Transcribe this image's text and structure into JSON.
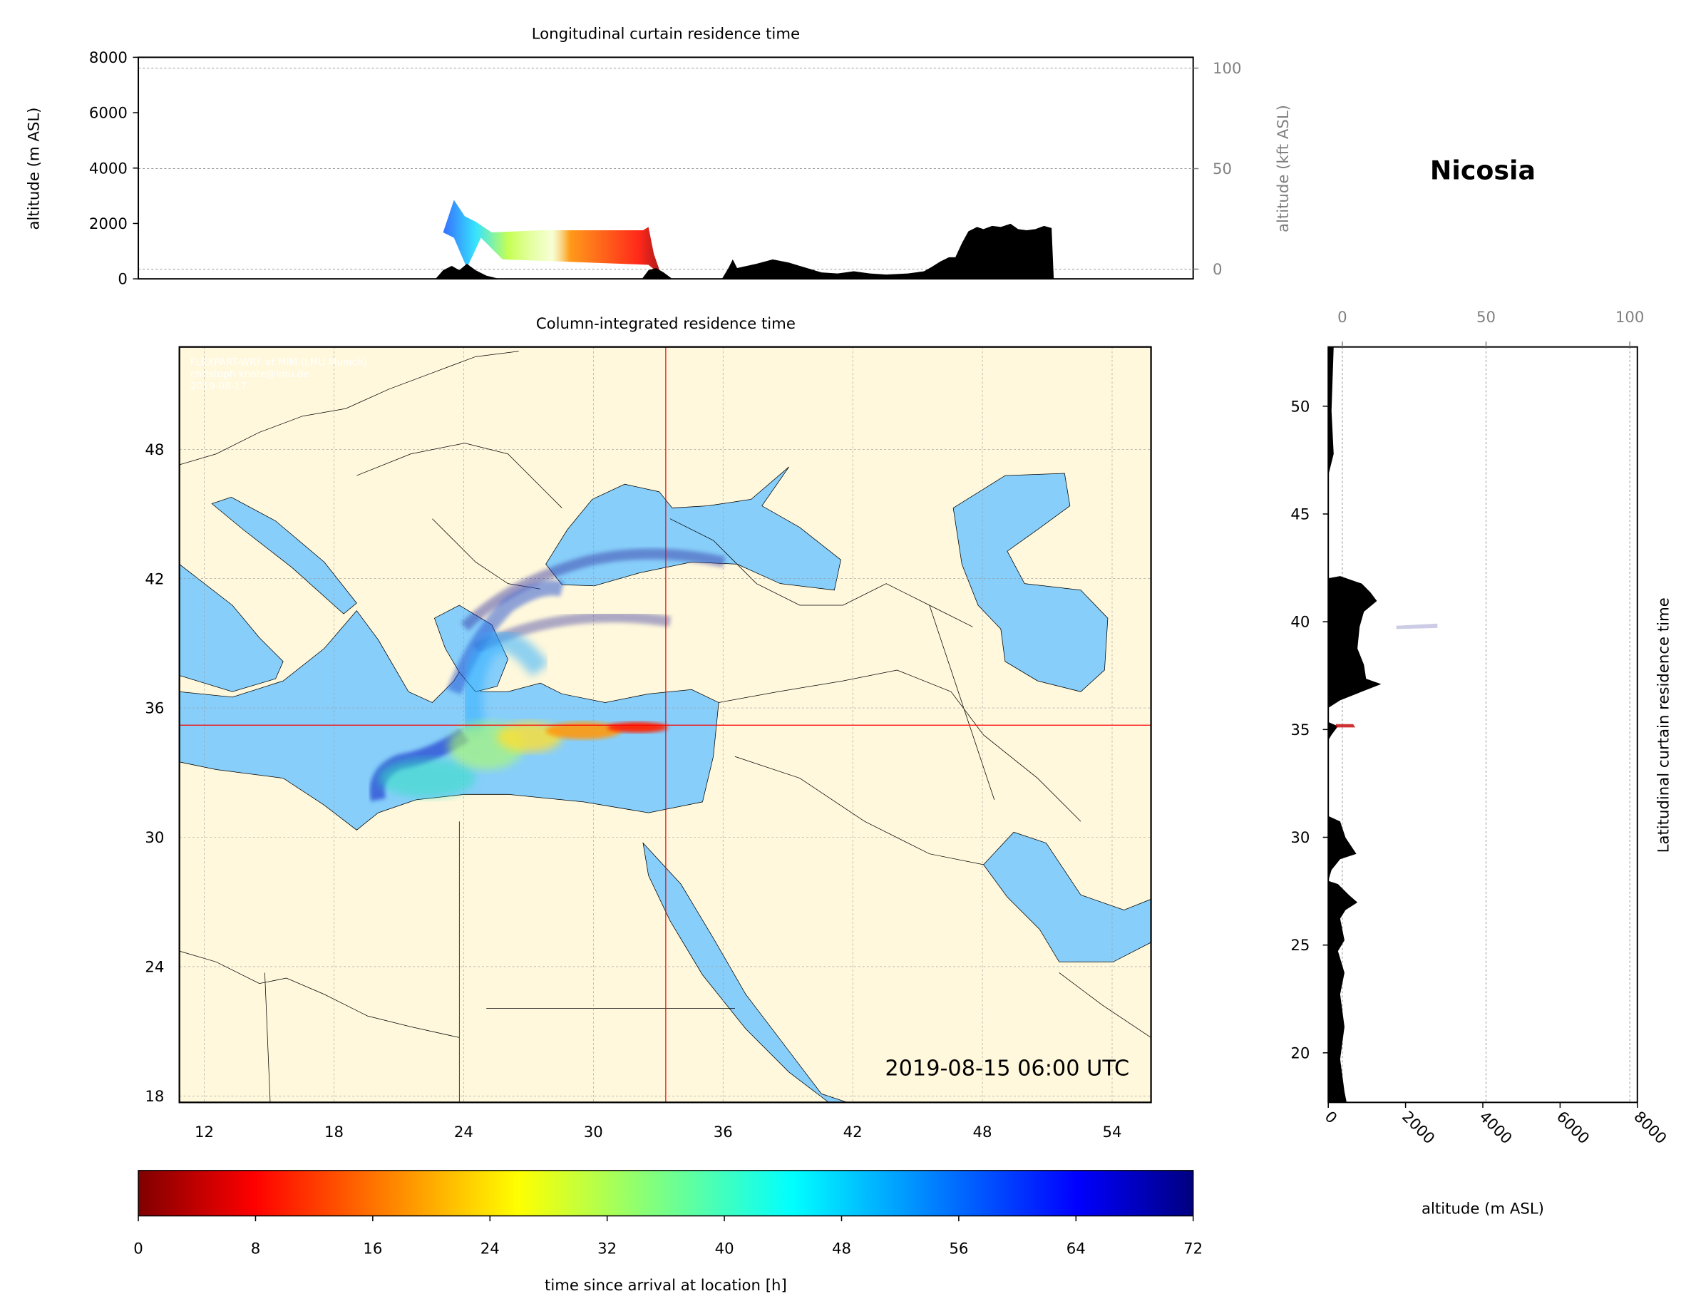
{
  "location": "Nicosia",
  "watermark": [
    "FLEXPART-WRF at MIM (LMU Munich)",
    "christoph.knote@lmu.de",
    "2019-08-17"
  ],
  "timestamp": "2019-08-15 06:00 UTC",
  "colors": {
    "land": "#fff8dc",
    "sea": "#87cefa",
    "crosshair": "#ff0000",
    "terrain": "#000000"
  },
  "chart_data": [
    {
      "type": "heatmap",
      "title": "Longitudinal curtain residence time",
      "ylabel": "altitude (m ASL)",
      "ylabel_right": "altitude (kft ASL)",
      "ylim": [
        0,
        8000
      ],
      "yticks": [
        0,
        2000,
        4000,
        6000,
        8000
      ],
      "yticks_right": [
        0,
        50,
        100
      ],
      "xlim": [
        10.85,
        55.8
      ]
    },
    {
      "type": "heatmap",
      "title": "Column-integrated residence time",
      "xlim": [
        10.85,
        55.8
      ],
      "ylim": [
        17.7,
        52.75
      ],
      "xticks": [
        12,
        18,
        24,
        30,
        36,
        42,
        48,
        54
      ],
      "yticks": [
        18,
        24,
        30,
        36,
        42,
        48
      ],
      "crosshair": {
        "lon": 33.35,
        "lat": 35.2
      },
      "grid": true
    },
    {
      "type": "heatmap",
      "title": "Latitudinal curtain residence time",
      "xlabel": "altitude (m ASL)",
      "xlim": [
        0,
        8000
      ],
      "xticks": [
        0,
        2000,
        4000,
        6000,
        8000
      ],
      "xticks_top": [
        0,
        50,
        100
      ],
      "ylim": [
        17.7,
        52.75
      ],
      "yticks": [
        20,
        25,
        30,
        35,
        40,
        45,
        50
      ]
    },
    {
      "type": "colorbar",
      "label": "time since arrival at location [h]",
      "range": [
        0,
        72
      ],
      "ticks": [
        0,
        8,
        16,
        24,
        32,
        40,
        48,
        56,
        64,
        72
      ],
      "colormap": "jet_r"
    }
  ]
}
